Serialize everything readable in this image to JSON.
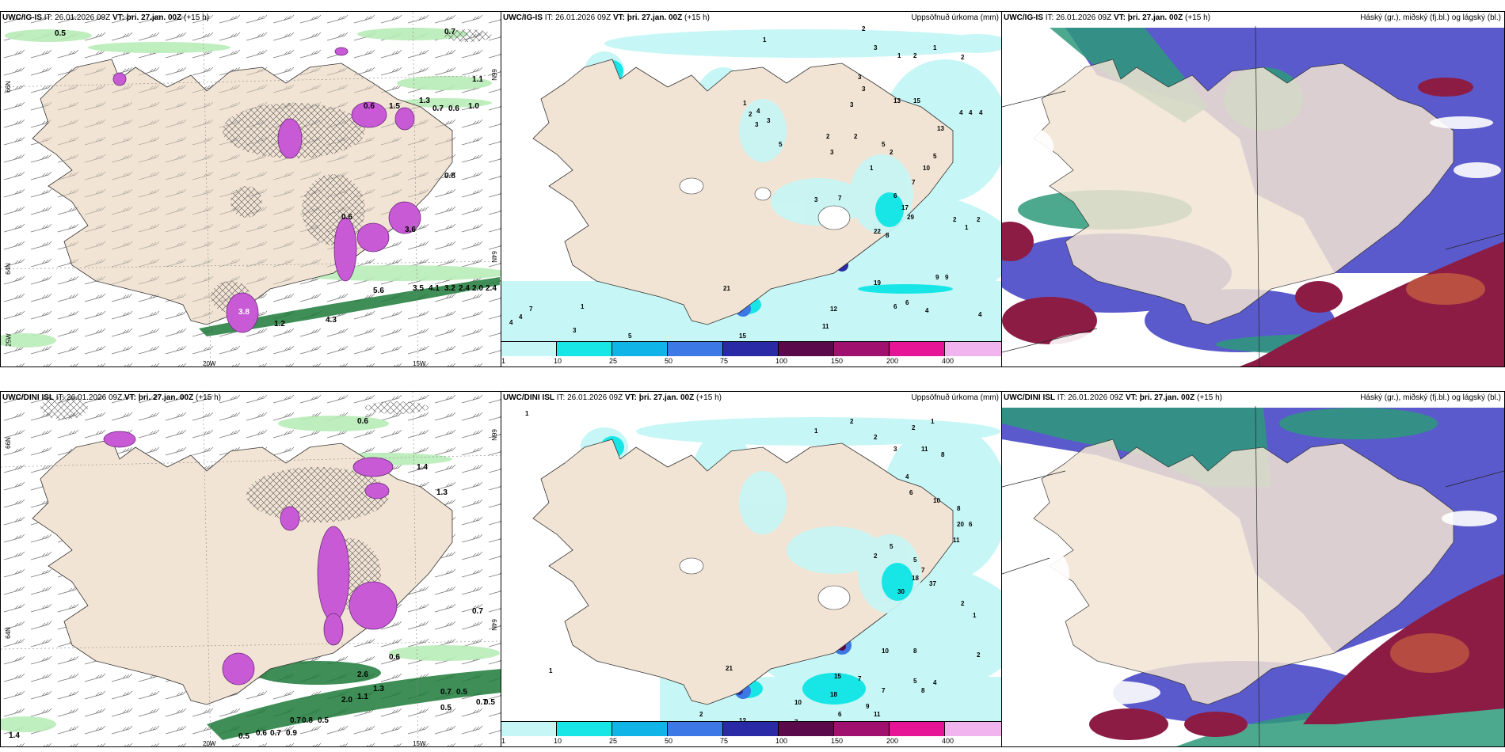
{
  "panels": {
    "p1": {
      "model": "UWC/IG-IS",
      "it_label": "IT:",
      "it": "26.01.2026 09Z",
      "vt_label": "VT:",
      "vt": "þri. 27.jan. 00Z",
      "lead": "(+15 h)"
    },
    "p2": {
      "model": "UWC/IG-IS",
      "it_label": "IT:",
      "it": "26.01.2026 09Z",
      "vt_label": "VT:",
      "vt": "þri. 27.jan. 00Z",
      "lead": "(+15 h)",
      "right_title": "Uppsöfnuð úrkoma (mm)"
    },
    "p3": {
      "model": "UWC/IG-IS",
      "it_label": "IT:",
      "it": "26.01.2026 09Z",
      "vt_label": "VT:",
      "vt": "þri. 27.jan. 00Z",
      "lead": "(+15 h)",
      "right_title": "Háský (gr.), miðský (fj.bl.) og lágský (bl.)"
    },
    "p4": {
      "model": "UWC/DINI ISL",
      "it_label": "IT:",
      "it": "26.01.2026 09Z",
      "vt_label": "VT:",
      "vt": "þri. 27.jan. 00Z",
      "lead": "(+15 h)"
    },
    "p5": {
      "model": "UWC/DINI ISL",
      "it_label": "IT:",
      "it": "26.01.2026 09Z",
      "vt_label": "VT:",
      "vt": "þri. 27.jan. 00Z",
      "lead": "(+15 h)",
      "right_title": "Uppsöfnuð úrkoma (mm)"
    },
    "p6": {
      "model": "UWC/DINI ISL",
      "it_label": "IT:",
      "it": "26.01.2026 09Z",
      "vt_label": "VT:",
      "vt": "þri. 27.jan. 00Z",
      "lead": "(+15 h)",
      "right_title": "Háský (gr.), miðský (fj.bl.) og lágský (bl.)"
    }
  },
  "axes": {
    "lat66": "66N",
    "lat64": "64N",
    "lon20": "20W",
    "lon15": "15W",
    "lon25": "25W"
  },
  "colorbar": {
    "levels": [
      "1",
      "10",
      "25",
      "50",
      "75",
      "100",
      "150",
      "200",
      "400"
    ],
    "colors": [
      "#c6f6f6",
      "#18e6e6",
      "#10b4e6",
      "#3c78e6",
      "#2a2aa6",
      "#5a0a4a",
      "#a0106e",
      "#e61496",
      "#f2b4ee"
    ]
  },
  "labels_top_left": [
    "0.5",
    "0.7",
    "1.1",
    "0.6",
    "1.5",
    "1.3",
    "0.7",
    "0.6",
    "1.0",
    "0.8",
    "0.6",
    "3.6",
    "5.6",
    "3.5",
    "4.1",
    "3.2",
    "2.4",
    "2.0",
    "2.4",
    "3.8",
    "1.2",
    "4.3"
  ],
  "labels_bottom_left": [
    "0.6",
    "0.7",
    "1.4",
    "1.3",
    "0.7",
    "0.5",
    "0.6",
    "2.6",
    "1.3",
    "1.1",
    "2.0",
    "0.7",
    "0.8",
    "0.5",
    "0.7",
    "0.5",
    "0.5",
    "0.5",
    "0.6",
    "0.7",
    "0.9",
    "1.4"
  ],
  "labels_top_mid": [
    "1",
    "2",
    "3",
    "1",
    "2",
    "1",
    "2",
    "3",
    "13",
    "15",
    "13",
    "4",
    "4",
    "4",
    "1",
    "2",
    "3",
    "4",
    "3",
    "5",
    "2",
    "3",
    "2",
    "5",
    "3",
    "3",
    "1",
    "2",
    "7",
    "10",
    "5",
    "3",
    "7",
    "6",
    "17",
    "29",
    "22",
    "8",
    "2",
    "1",
    "2",
    "19",
    "9",
    "9",
    "6",
    "6",
    "4",
    "12",
    "4",
    "7",
    "1",
    "3",
    "5",
    "15",
    "11",
    "21",
    "4",
    "4"
  ],
  "labels_bottom_mid": [
    "1",
    "2",
    "2",
    "2",
    "1",
    "3",
    "11",
    "8",
    "4",
    "6",
    "10",
    "8",
    "20",
    "6",
    "11",
    "5",
    "2",
    "5",
    "7",
    "18",
    "37",
    "30",
    "2",
    "1",
    "2",
    "10",
    "8",
    "15",
    "18",
    "7",
    "7",
    "5",
    "4",
    "8",
    "9",
    "11",
    "10",
    "6",
    "12",
    "7",
    "2",
    "1",
    "21",
    "1"
  ],
  "cloud_legend": ""
}
